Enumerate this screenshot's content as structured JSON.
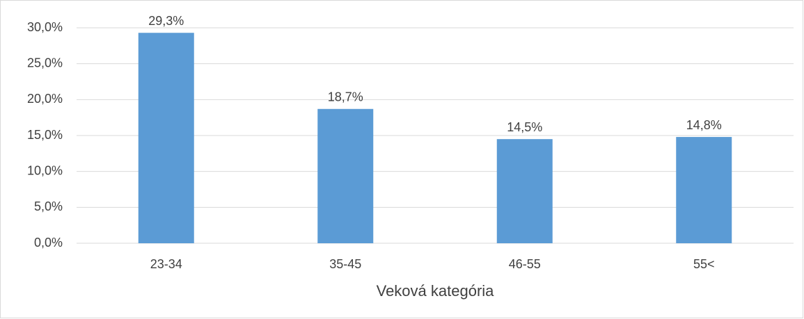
{
  "chart_data": {
    "type": "bar",
    "x_label": "Veková kategória",
    "categories": [
      "23-34",
      "35-45",
      "46-55",
      "55<"
    ],
    "values": [
      29.3,
      18.7,
      14.5,
      14.8
    ],
    "value_labels": [
      "29,3%",
      "18,7%",
      "14,5%",
      "14,8%"
    ],
    "color": "#5b9bd5",
    "ylim": [
      0,
      30
    ],
    "yticks": [
      {
        "value": 0,
        "label": "0,0%"
      },
      {
        "value": 5,
        "label": "5,0%"
      },
      {
        "value": 10,
        "label": "10,0%"
      },
      {
        "value": 15,
        "label": "15,0%"
      },
      {
        "value": 20,
        "label": "20,0%"
      },
      {
        "value": 25,
        "label": "25,0%"
      },
      {
        "value": 30,
        "label": "30,0%"
      }
    ],
    "grid": true
  }
}
